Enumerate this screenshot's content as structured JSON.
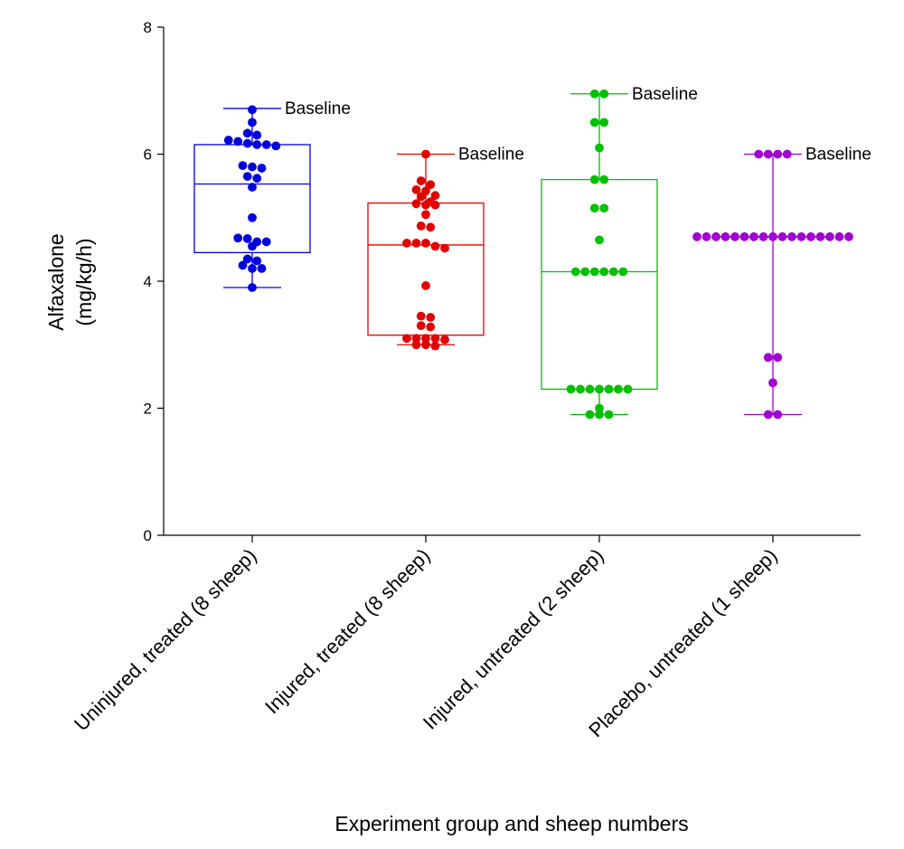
{
  "chart_data": {
    "type": "box",
    "xlabel": "Experiment group and sheep numbers",
    "ylabel_lines": [
      "Alfaxalone",
      "(mg/kg/h)"
    ],
    "ylim": [
      0,
      8
    ],
    "yticks": [
      0,
      2,
      4,
      6,
      8
    ],
    "categories": [
      "Uninjured, treated (8 sheep)",
      "Injured, treated (8 sheep)",
      "Injured, untreated (2 sheep)",
      "Placebo, untreated (1 sheep)"
    ],
    "groups": [
      {
        "color": "#0000dd",
        "box": {
          "min": 3.9,
          "q1": 4.45,
          "median": 5.53,
          "q3": 6.15,
          "max": 6.72
        },
        "annotation": "Baseline",
        "points": [
          6.7,
          6.5,
          6.33,
          6.3,
          6.22,
          6.2,
          6.17,
          6.15,
          6.15,
          6.13,
          5.82,
          5.8,
          5.78,
          5.65,
          5.62,
          5.48,
          5.0,
          4.68,
          4.67,
          4.62,
          4.62,
          4.55,
          4.35,
          4.32,
          4.25,
          4.2,
          4.2,
          3.9
        ]
      },
      {
        "color": "#e00000",
        "box": {
          "min": 3.0,
          "q1": 3.15,
          "median": 4.57,
          "q3": 5.23,
          "max": 6.0
        },
        "annotation": "Baseline",
        "points": [
          6.0,
          5.58,
          5.52,
          5.44,
          5.42,
          5.35,
          5.33,
          5.25,
          5.22,
          5.2,
          5.2,
          5.05,
          4.87,
          4.85,
          4.6,
          4.6,
          4.6,
          4.55,
          4.52,
          3.93,
          3.45,
          3.43,
          3.3,
          3.28,
          3.1,
          3.1,
          3.1,
          3.1,
          3.08,
          3.0,
          3.0,
          2.98
        ]
      },
      {
        "color": "#00c000",
        "box": {
          "min": 1.9,
          "q1": 2.3,
          "median": 4.15,
          "q3": 5.6,
          "max": 6.95
        },
        "annotation": "Baseline",
        "points": [
          6.95,
          6.95,
          6.5,
          6.5,
          6.1,
          5.6,
          5.6,
          5.15,
          5.15,
          4.65,
          4.15,
          4.15,
          4.15,
          4.15,
          4.15,
          4.15,
          2.3,
          2.3,
          2.3,
          2.3,
          2.3,
          2.3,
          2.3,
          2.0,
          1.9,
          1.9,
          1.9
        ]
      },
      {
        "color": "#a000d0",
        "box": {
          "min": 1.9,
          "q1": 4.7,
          "median": 4.7,
          "q3": 4.7,
          "max": 6.0
        },
        "annotation": "Baseline",
        "points": [
          6.0,
          6.0,
          6.0,
          6.0,
          4.7,
          4.7,
          4.7,
          4.7,
          4.7,
          4.7,
          4.7,
          4.7,
          4.7,
          4.7,
          4.7,
          4.7,
          4.7,
          4.7,
          4.7,
          4.7,
          4.7,
          2.8,
          2.8,
          2.4,
          1.9,
          1.9
        ]
      }
    ]
  }
}
